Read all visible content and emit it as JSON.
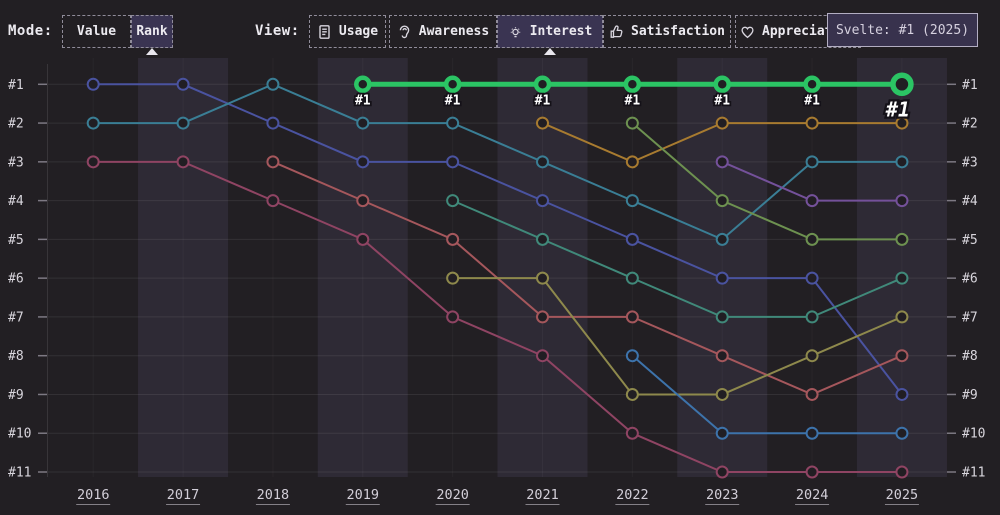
{
  "toolbar": {
    "mode_label": "Mode:",
    "mode_buttons": [
      {
        "label": "Value",
        "selected": false
      },
      {
        "label": "Rank",
        "selected": true
      }
    ],
    "view_label": "View:",
    "view_buttons": [
      {
        "label": "Usage",
        "icon": "document-icon",
        "selected": false
      },
      {
        "label": "Awareness",
        "icon": "ear-icon",
        "selected": false
      },
      {
        "label": "Interest",
        "icon": "lightbulb-icon",
        "selected": true
      },
      {
        "label": "Satisfaction",
        "icon": "thumbs-up-icon",
        "selected": false
      },
      {
        "label": "Appreciation",
        "icon": "heart-icon",
        "selected": false
      }
    ]
  },
  "tooltip": {
    "text": "Svelte: #1 (2025)"
  },
  "chart_data": {
    "type": "line",
    "subtype": "bump-rank-chart",
    "grid": true,
    "years": [
      "2016",
      "2017",
      "2018",
      "2019",
      "2020",
      "2021",
      "2022",
      "2023",
      "2024",
      "2025"
    ],
    "rank_labels": [
      "#1",
      "#2",
      "#3",
      "#4",
      "#5",
      "#6",
      "#7",
      "#8",
      "#9",
      "#10",
      "#11"
    ],
    "ylim": [
      1,
      11
    ],
    "highlighted_series": "svelte",
    "highlight_point_label": "#1",
    "highlight_end_label": "#1",
    "series": [
      {
        "id": "line-indigo",
        "color": "#4a53a0",
        "highlight": false,
        "points": [
          [
            2016,
            1
          ],
          [
            2017,
            1
          ],
          [
            2018,
            2
          ],
          [
            2019,
            3
          ],
          [
            2020,
            3
          ],
          [
            2021,
            4
          ],
          [
            2022,
            5
          ],
          [
            2023,
            6
          ],
          [
            2024,
            6
          ],
          [
            2025,
            9
          ]
        ]
      },
      {
        "id": "line-teal",
        "color": "#3a7e95",
        "highlight": false,
        "points": [
          [
            2016,
            2
          ],
          [
            2017,
            2
          ],
          [
            2018,
            1
          ],
          [
            2019,
            2
          ],
          [
            2020,
            2
          ],
          [
            2021,
            3
          ],
          [
            2022,
            4
          ],
          [
            2023,
            5
          ],
          [
            2024,
            3
          ],
          [
            2025,
            3
          ]
        ]
      },
      {
        "id": "line-crimson",
        "color": "#8f4463",
        "highlight": false,
        "points": [
          [
            2016,
            3
          ],
          [
            2017,
            3
          ],
          [
            2018,
            4
          ],
          [
            2019,
            5
          ],
          [
            2020,
            7
          ],
          [
            2021,
            8
          ],
          [
            2022,
            10
          ],
          [
            2023,
            11
          ],
          [
            2024,
            11
          ],
          [
            2025,
            11
          ]
        ]
      },
      {
        "id": "line-red",
        "color": "#a5575c",
        "highlight": false,
        "points": [
          [
            2018,
            3
          ],
          [
            2019,
            4
          ],
          [
            2020,
            5
          ],
          [
            2021,
            7
          ],
          [
            2022,
            7
          ],
          [
            2023,
            8
          ],
          [
            2024,
            9
          ],
          [
            2025,
            8
          ]
        ]
      },
      {
        "id": "line-sea-teal",
        "color": "#40897a",
        "highlight": false,
        "points": [
          [
            2020,
            4
          ],
          [
            2021,
            5
          ],
          [
            2022,
            6
          ],
          [
            2023,
            7
          ],
          [
            2024,
            7
          ],
          [
            2025,
            6
          ]
        ]
      },
      {
        "id": "line-olive",
        "color": "#8e894c",
        "highlight": false,
        "points": [
          [
            2020,
            6
          ],
          [
            2021,
            6
          ],
          [
            2022,
            9
          ],
          [
            2023,
            9
          ],
          [
            2024,
            8
          ],
          [
            2025,
            7
          ]
        ]
      },
      {
        "id": "line-amber",
        "color": "#a87b30",
        "highlight": false,
        "points": [
          [
            2021,
            2
          ],
          [
            2022,
            3
          ],
          [
            2023,
            2
          ],
          [
            2024,
            2
          ],
          [
            2025,
            2
          ]
        ]
      },
      {
        "id": "line-green",
        "color": "#6d9150",
        "highlight": false,
        "points": [
          [
            2022,
            2
          ],
          [
            2023,
            4
          ],
          [
            2024,
            5
          ],
          [
            2025,
            5
          ]
        ]
      },
      {
        "id": "line-denim",
        "color": "#3d73ab",
        "highlight": false,
        "points": [
          [
            2022,
            8
          ],
          [
            2023,
            10
          ],
          [
            2024,
            10
          ],
          [
            2025,
            10
          ]
        ]
      },
      {
        "id": "line-purple",
        "color": "#74519a",
        "highlight": false,
        "points": [
          [
            2023,
            3
          ],
          [
            2024,
            4
          ],
          [
            2025,
            4
          ]
        ]
      },
      {
        "id": "svelte",
        "color": "#2bc464",
        "highlight": true,
        "points": [
          [
            2019,
            1
          ],
          [
            2020,
            1
          ],
          [
            2021,
            1
          ],
          [
            2022,
            1
          ],
          [
            2023,
            1
          ],
          [
            2024,
            1
          ],
          [
            2025,
            1
          ]
        ]
      }
    ],
    "colors": {
      "background": "#221f23",
      "band": "rgba(128,116,180,0.13)",
      "gridline": "rgba(255,255,255,0.08)",
      "tick": "#7d7983",
      "axis_text": "#d8d5dc",
      "year_text": "#d2ced8",
      "highlight": "#2bc464",
      "point_fill": "#211e23"
    }
  }
}
